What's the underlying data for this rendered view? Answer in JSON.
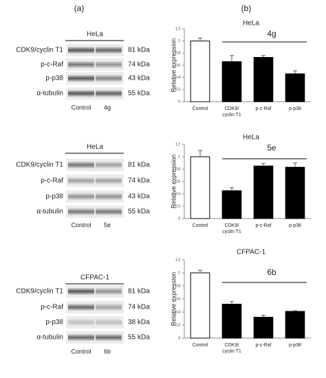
{
  "panel_labels": [
    "(a)",
    "(b)"
  ],
  "blots": [
    {
      "cell_line": "HeLa",
      "rows": [
        {
          "label": "CDK9/cyclin T1",
          "size": "81 kDa"
        },
        {
          "label": "p-c-Raf",
          "size": "74 kDa"
        },
        {
          "label": "p-p38",
          "size": "43 kDa"
        },
        {
          "label": "α-tubulin",
          "size": "55 kDa"
        }
      ],
      "conditions": [
        "Control",
        "4g"
      ]
    },
    {
      "cell_line": "HeLa",
      "rows": [
        {
          "label": "CDK9/cyclin T1",
          "size": "81 kDa"
        },
        {
          "label": "p-c-Raf",
          "size": "74 kDa"
        },
        {
          "label": "p-p38",
          "size": "43 kDa"
        },
        {
          "label": "α-tubulin",
          "size": "55 kDa"
        }
      ],
      "conditions": [
        "Control",
        "5e"
      ]
    },
    {
      "cell_line": "CFPAC-1",
      "rows": [
        {
          "label": "CDK9/cyclin T1",
          "size": "81 kDa"
        },
        {
          "label": "p-c-Raf",
          "size": "74 kDa"
        },
        {
          "label": "p-p38",
          "size": "38 kDa"
        },
        {
          "label": "α-tubulin",
          "size": "55 kDa"
        }
      ],
      "conditions": [
        "Control",
        "6b"
      ]
    }
  ],
  "chart_data": [
    {
      "type": "bar",
      "title": "HeLa",
      "annotation": "4g",
      "y_label": "Relative expression",
      "categories": [
        "Control",
        "CDK9/ cyclin T1",
        "p-c-Raf",
        "p-p38"
      ],
      "values": [
        1.0,
        0.66,
        0.73,
        0.46
      ],
      "errors": [
        0.05,
        0.1,
        0.03,
        0.05
      ],
      "colors": [
        "#ffffff",
        "#000000",
        "#000000",
        "#000000"
      ],
      "ylim": [
        0,
        1.2
      ],
      "yticks": [
        0,
        0.2,
        0.4,
        0.6,
        0.8,
        1,
        1.2
      ]
    },
    {
      "type": "bar",
      "title": "HeLa",
      "annotation": "5e",
      "y_label": "Relative expression",
      "categories": [
        "Control",
        "CDK9/ cyclin T1",
        "p-c-Raf",
        "p-p38"
      ],
      "values": [
        1.0,
        0.45,
        0.85,
        0.83
      ],
      "errors": [
        0.1,
        0.05,
        0.04,
        0.07
      ],
      "colors": [
        "#ffffff",
        "#000000",
        "#000000",
        "#000000"
      ],
      "ylim": [
        0,
        1.2
      ],
      "yticks": [
        0,
        0.2,
        0.4,
        0.6,
        0.8,
        1,
        1.2
      ]
    },
    {
      "type": "bar",
      "title": "CFPAC-1",
      "annotation": "6b",
      "y_label": "Relative expression",
      "categories": [
        "Control",
        "CDK9/ cyclin T1",
        "p-c-Raf",
        "p-p38"
      ],
      "values": [
        1.0,
        0.52,
        0.32,
        0.41
      ],
      "errors": [
        0.04,
        0.04,
        0.03,
        0.01
      ],
      "colors": [
        "#ffffff",
        "#000000",
        "#000000",
        "#000000"
      ],
      "ylim": [
        0,
        1.2
      ],
      "yticks": [
        0,
        0.2,
        0.4,
        0.6,
        0.8,
        1,
        1.2
      ]
    }
  ]
}
